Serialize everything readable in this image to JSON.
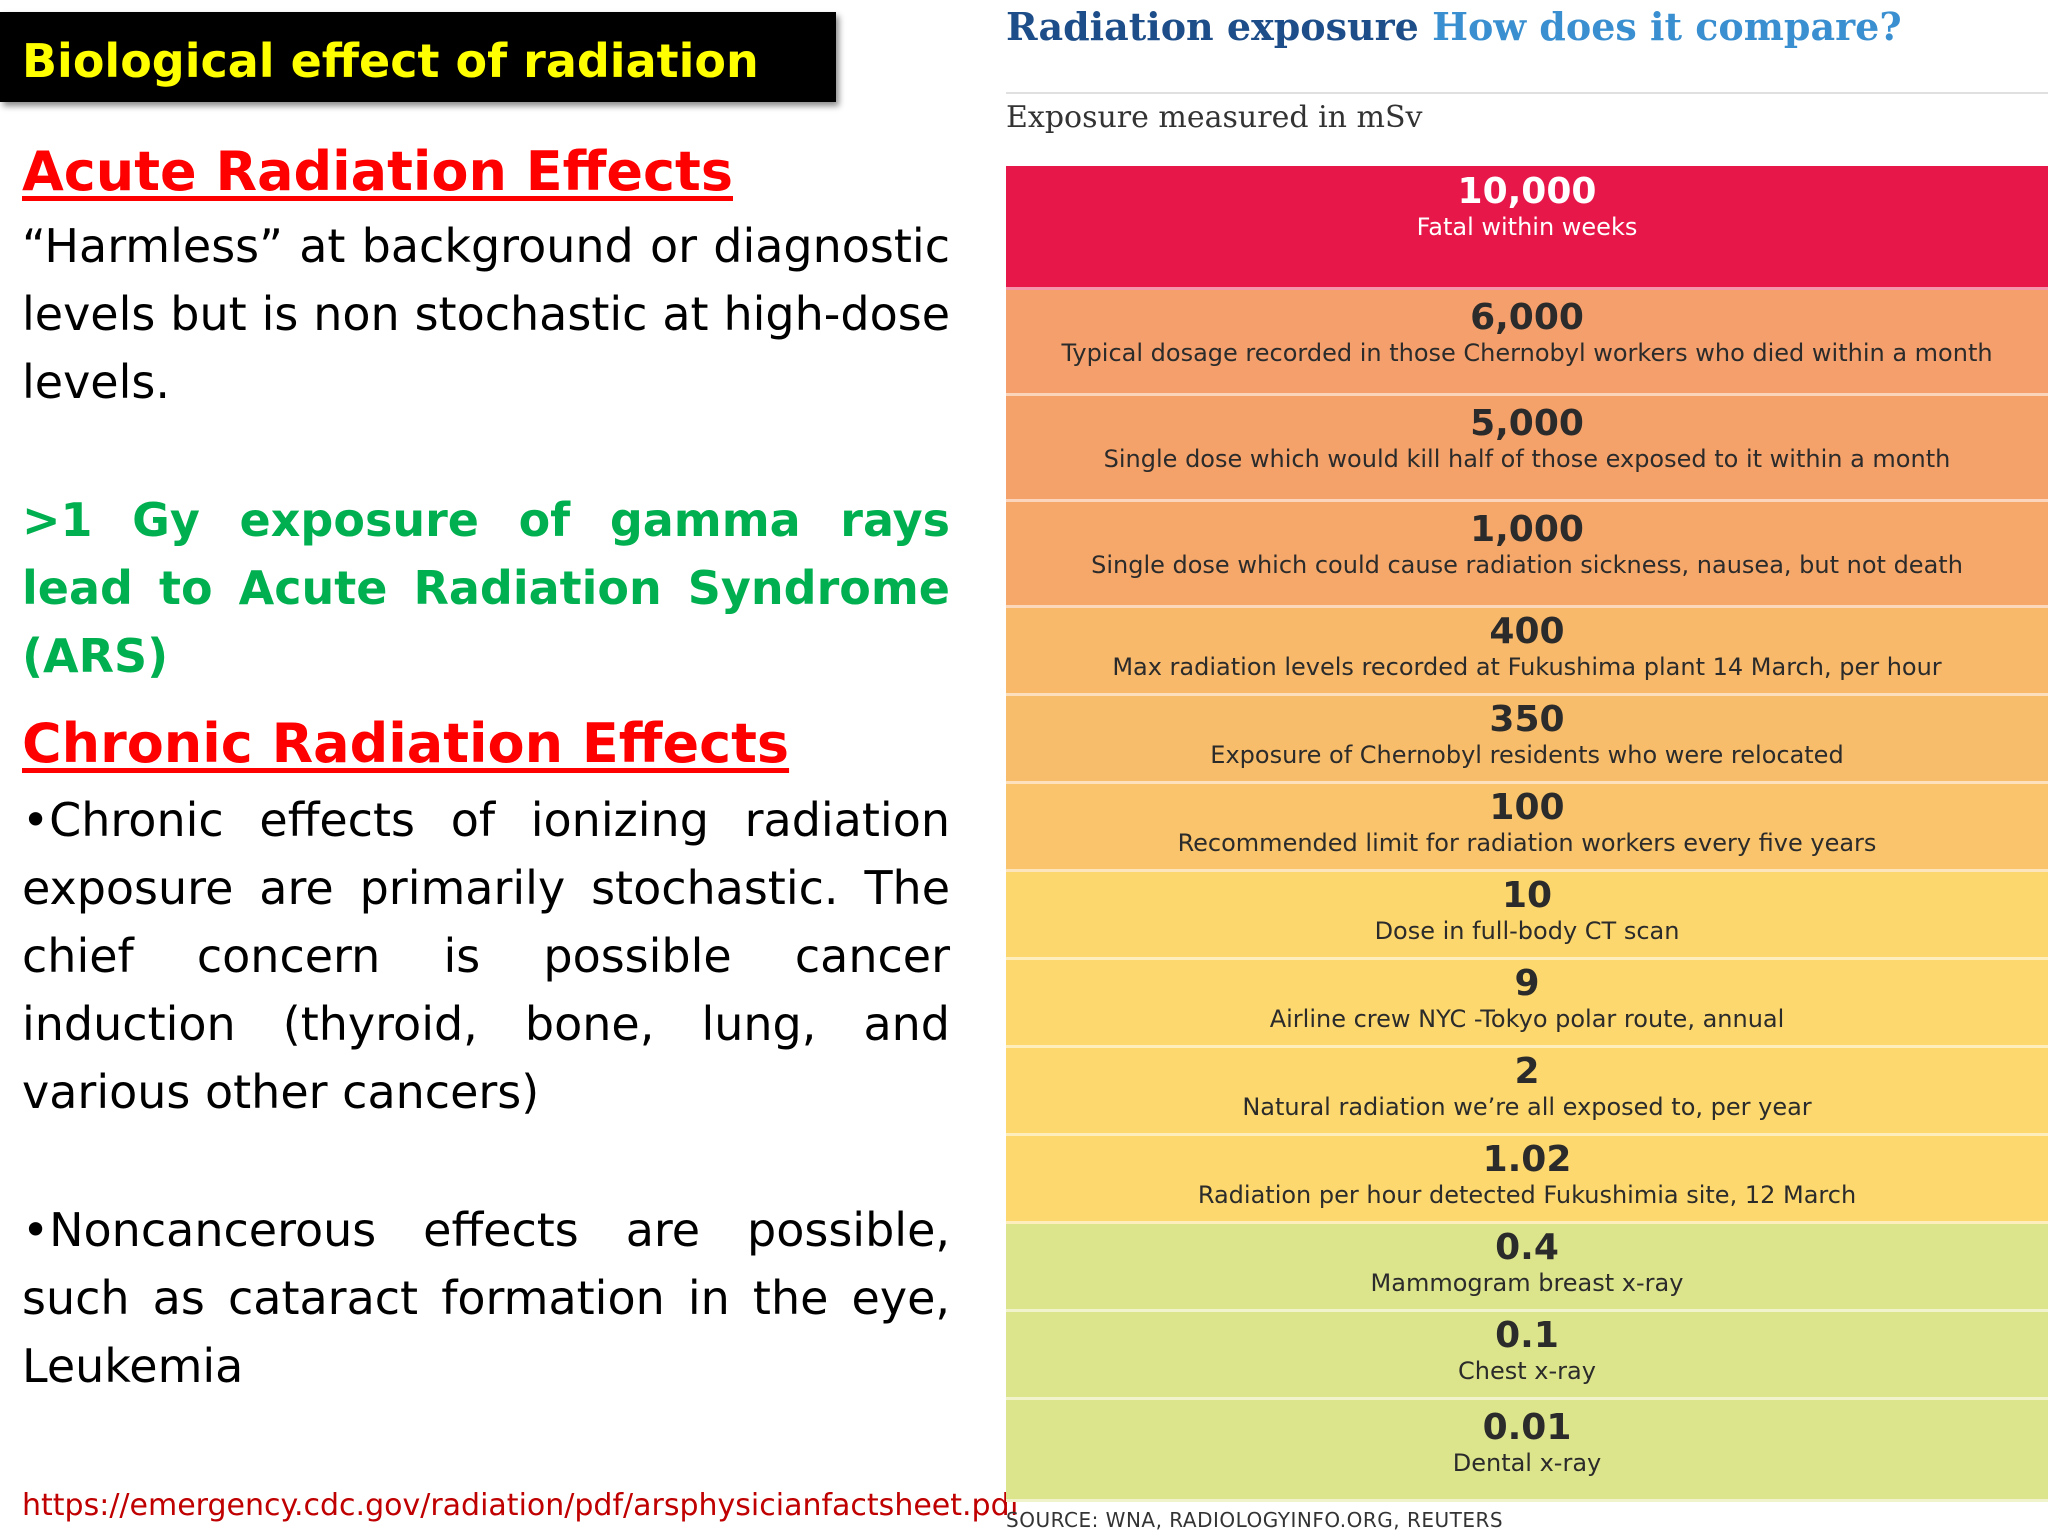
{
  "slide": {
    "title": "Biological effect of radiation",
    "acute": {
      "heading": "Acute Radiation Effects",
      "text": "“Harmless” at background or diagnostic levels but is non stochastic at high-dose levels.",
      "highlight": ">1 Gy exposure of gamma rays lead to Acute Radiation Syndrome (ARS)"
    },
    "chronic": {
      "heading": "Chronic Radiation Effects",
      "bullet1": "•Chronic effects of ionizing radiation exposure are primarily stochastic. The chief concern is possible cancer induction (thyroid, bone, lung, and various other cancers)",
      "bullet2": "•Noncancerous effects are possible, such as cataract formation in the eye, Leukemia"
    },
    "link": "https://emergency.cdc.gov/radiation/pdf/arsphysicianfactsheet.pdf"
  },
  "infographic": {
    "title_part1": "Radiation exposure",
    "title_part2": "How does it compare?",
    "subtitle": "Exposure measured in mSv",
    "source": "SOURCE: WNA, RADIOLOGYINFO.ORG, REUTERS",
    "colors": {
      "fatal": "#e8174a",
      "orange": "#f5a26a",
      "light_orange": "#f8bd6a",
      "yellow": "#fcd86e",
      "green": "#dde58c"
    },
    "bands": [
      {
        "value": "10,000",
        "desc": "Fatal within weeks",
        "color": "#e8174a"
      },
      {
        "value": "6,000",
        "desc": "Typical dosage recorded in those Chernobyl workers who died within a month",
        "color": "#f5a06c"
      },
      {
        "value": "5,000",
        "desc": "Single dose which would kill half of those exposed to it within a month",
        "color": "#f5a26a"
      },
      {
        "value": "1,000",
        "desc": "Single dose which could cause radiation sickness, nausea, but not death",
        "color": "#f6a86a"
      },
      {
        "value": "400",
        "desc": "Max radiation levels recorded at Fukushima plant 14 March, per hour",
        "color": "#f8b96a"
      },
      {
        "value": "350",
        "desc": "Exposure of Chernobyl residents who were relocated",
        "color": "#f8bd6a"
      },
      {
        "value": "100",
        "desc": "Recommended limit for radiation workers every five years",
        "color": "#f9c46b"
      },
      {
        "value": "10",
        "desc": "Dose in full-body CT scan",
        "color": "#fcd76e"
      },
      {
        "value": "9",
        "desc": "Airline crew NYC -Tokyo polar route, annual",
        "color": "#fcd86e"
      },
      {
        "value": "2",
        "desc": "Natural radiation we’re all exposed to, per year",
        "color": "#fcd86e"
      },
      {
        "value": "1.02",
        "desc": "Radiation per hour detected Fukushimia site, 12 March",
        "color": "#fcd86e"
      },
      {
        "value": "0.4",
        "desc": "Mammogram breast x-ray",
        "color": "#dde58c"
      },
      {
        "value": "0.1",
        "desc": "Chest x-ray",
        "color": "#dde58c"
      },
      {
        "value": "0.01",
        "desc": "Dental x-ray",
        "color": "#dde58c"
      }
    ]
  }
}
